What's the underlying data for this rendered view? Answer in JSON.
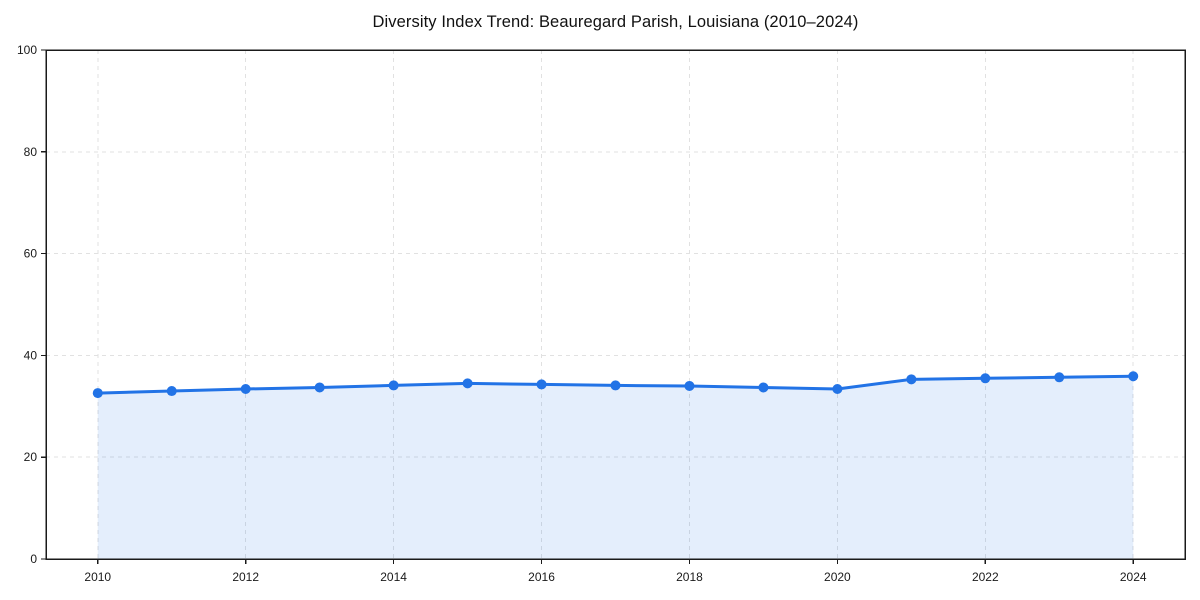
{
  "page": {
    "background_color": "#FFFFFF"
  },
  "chart_data": {
    "type": "area",
    "title": "Diversity Index Trend: Beauregard Parish, Louisiana (2010–2024)",
    "x": [
      2010,
      2011,
      2012,
      2013,
      2014,
      2015,
      2016,
      2017,
      2018,
      2019,
      2020,
      2021,
      2022,
      2023,
      2024
    ],
    "series": [
      {
        "name": "Diversity Index",
        "values": [
          32.6,
          33.0,
          33.4,
          33.7,
          34.1,
          34.5,
          34.3,
          34.1,
          34.0,
          33.7,
          33.4,
          35.3,
          35.5,
          35.7,
          35.9
        ]
      }
    ],
    "xlabel": "",
    "ylabel": "",
    "xlim": [
      2009.3,
      2024.7
    ],
    "ylim": [
      0,
      100
    ],
    "xticks": [
      2010,
      2012,
      2014,
      2016,
      2018,
      2020,
      2022,
      2024
    ],
    "yticks": [
      0,
      20,
      40,
      60,
      80,
      100
    ],
    "grid": true,
    "grid_style": "dashed",
    "legend": "none",
    "marker": "circle",
    "marker_radius": 5,
    "line_width": 3,
    "colors": {
      "line": "#2273E6",
      "marker": "#2273E6",
      "fill": "rgba(34, 115, 230, 0.12)",
      "grid": "#E1E1E1",
      "axis": "#1A1A1A",
      "tick_label": "#1A1A1A",
      "title": "#111111",
      "background": "#FFFFFF"
    }
  }
}
